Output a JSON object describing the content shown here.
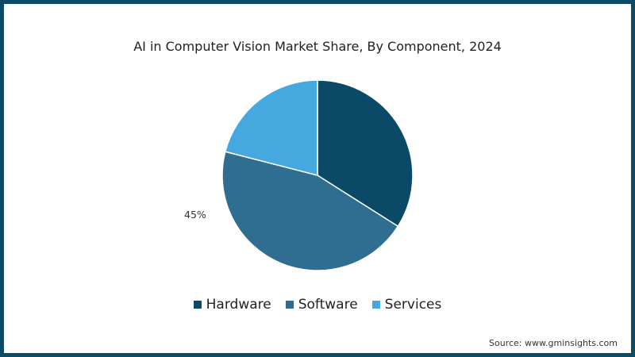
{
  "chart_data": {
    "type": "pie",
    "title": "AI in Computer Vision Market Share, By Component, 2024",
    "categories": [
      "Hardware",
      "Software",
      "Services"
    ],
    "values": [
      34,
      45,
      21
    ],
    "colors": [
      "#0a4a66",
      "#2f6d91",
      "#45a9e0"
    ],
    "data_labels": [
      {
        "category": "Software",
        "text": "45%"
      }
    ],
    "legend": {
      "position": "bottom",
      "entries": [
        "Hardware",
        "Software",
        "Services"
      ]
    },
    "start_angle": "12 o'clock",
    "direction": "clockwise"
  },
  "title": "AI in Computer Vision Market Share, By Component, 2024",
  "label_software": "45%",
  "legend": [
    {
      "label": "Hardware",
      "color": "#0a4a66"
    },
    {
      "label": "Software",
      "color": "#2f6d91"
    },
    {
      "label": "Services",
      "color": "#45a9e0"
    }
  ],
  "source": "Source: www.gminsights.com",
  "colors": {
    "border": "#0d4a66",
    "background": "#ffffff"
  }
}
